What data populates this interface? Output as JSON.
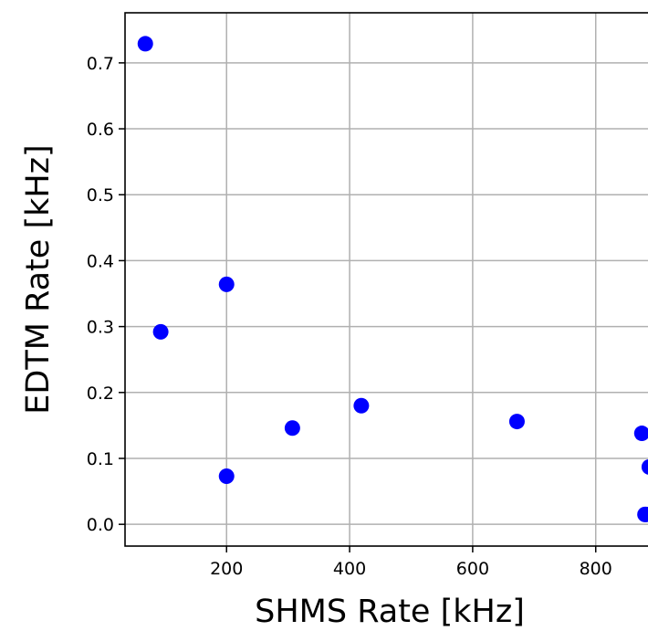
{
  "chart_data": {
    "type": "scatter",
    "title": "",
    "xlabel": "SHMS Rate [kHz]",
    "ylabel": "EDTM Rate [kHz]",
    "xlim": [
      35,
      925
    ],
    "ylim": [
      -0.033,
      0.776
    ],
    "xticks": [
      200,
      400,
      600,
      800
    ],
    "yticks": [
      0.0,
      0.1,
      0.2,
      0.3,
      0.4,
      0.5,
      0.6,
      0.7
    ],
    "xtick_labels": [
      "200",
      "400",
      "600",
      "800"
    ],
    "ytick_labels": [
      "0.0",
      "0.1",
      "0.2",
      "0.3",
      "0.4",
      "0.5",
      "0.6",
      "0.7"
    ],
    "grid": true,
    "marker_color": "#0000ff",
    "series": [
      {
        "x": [
          68,
          93,
          200,
          200,
          307,
          419,
          672,
          875,
          882,
          887,
          880
        ],
        "y": [
          0.729,
          0.292,
          0.364,
          0.073,
          0.146,
          0.18,
          0.156,
          0.138,
          0.015,
          0.087,
          0.015
        ]
      }
    ]
  }
}
